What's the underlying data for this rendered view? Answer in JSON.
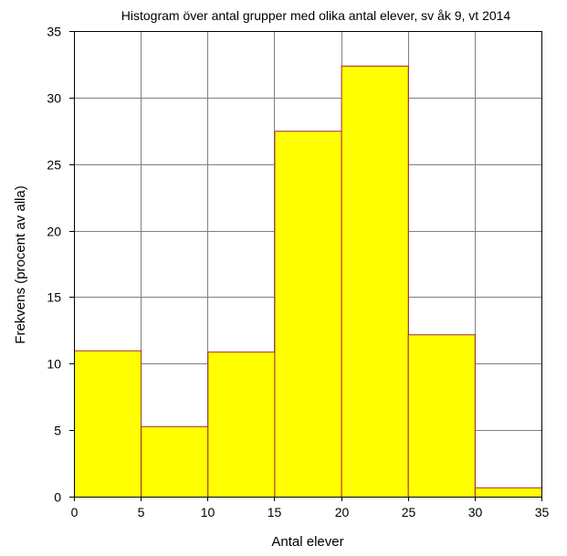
{
  "chart_data": {
    "type": "bar",
    "title": "Histogram över antal grupper med olika antal elever, sv åk 9, vt 2014",
    "xlabel": "Antal elever",
    "ylabel": "Frekvens (procent av alla)",
    "bins": [
      {
        "from": 0,
        "to": 5,
        "value": 11.0
      },
      {
        "from": 5,
        "to": 10,
        "value": 5.3
      },
      {
        "from": 10,
        "to": 15,
        "value": 10.9
      },
      {
        "from": 15,
        "to": 20,
        "value": 27.5
      },
      {
        "from": 20,
        "to": 25,
        "value": 32.4
      },
      {
        "from": 25,
        "to": 30,
        "value": 12.2
      },
      {
        "from": 30,
        "to": 35,
        "value": 0.7
      }
    ],
    "xlim": [
      0,
      35
    ],
    "ylim": [
      0,
      35
    ],
    "xticks": [
      "0",
      "5",
      "10",
      "15",
      "20",
      "25",
      "30",
      "35"
    ],
    "yticks": [
      "0",
      "5",
      "10",
      "15",
      "20",
      "25",
      "30",
      "35"
    ],
    "grid": true,
    "bar_color": "#ffff00",
    "bar_edge_color": "#a0283c"
  }
}
